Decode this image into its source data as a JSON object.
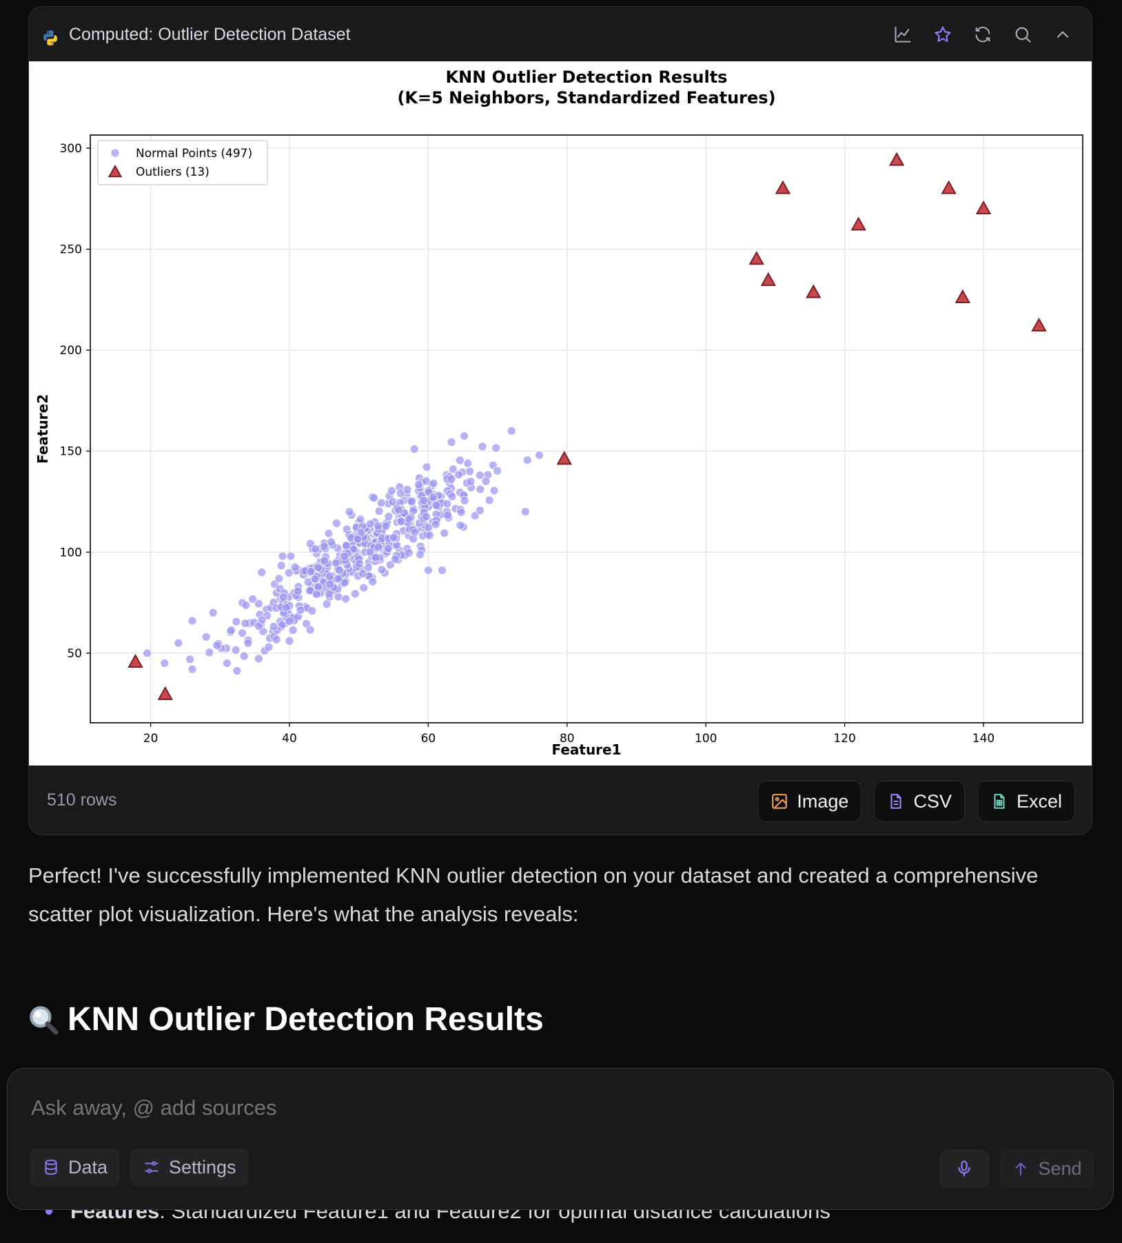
{
  "card": {
    "title": "Computed: Outlier Detection Dataset",
    "header_icons": [
      "chart-icon",
      "star-icon",
      "refresh-icon",
      "search-icon",
      "chevron-up-icon"
    ],
    "rows_label": "510 rows",
    "export_buttons": [
      {
        "label": "Image",
        "icon": "image-icon",
        "color": "#f0a45a"
      },
      {
        "label": "CSV",
        "icon": "file-icon",
        "color": "#9a8cf7"
      },
      {
        "label": "Excel",
        "icon": "spreadsheet-icon",
        "color": "#6fd3b8"
      }
    ]
  },
  "chart_data": {
    "type": "scatter",
    "title": "KNN Outlier Detection Results\n(K=5 Neighbors, Standardized Features)",
    "title_lines": [
      "KNN Outlier Detection Results",
      "(K=5 Neighbors, Standardized Features)"
    ],
    "xlabel": "Feature1",
    "ylabel": "Feature2",
    "xlim": [
      11.3,
      154.3
    ],
    "ylim": [
      15.5,
      306.5
    ],
    "xticks": [
      20,
      40,
      60,
      80,
      100,
      120,
      140
    ],
    "yticks": [
      50,
      100,
      150,
      200,
      250,
      300
    ],
    "grid": true,
    "legend_position": "top-left",
    "series": [
      {
        "name": "Normal Points (497)",
        "marker": "circle",
        "color": "#9a94ee",
        "generated_count": 497,
        "approx_trend": {
          "slope": 2.35,
          "intercept": -17.5,
          "x_center": 50,
          "x_spread": 9.5,
          "y_noise": 9
        },
        "points": [
          [
            19.5,
            50
          ],
          [
            22,
            45
          ],
          [
            24,
            55
          ],
          [
            26,
            42
          ],
          [
            26,
            66
          ],
          [
            28,
            58
          ],
          [
            29,
            70
          ],
          [
            31,
            45
          ],
          [
            58,
            151
          ],
          [
            72,
            160
          ],
          [
            76,
            148
          ],
          [
            74,
            120
          ],
          [
            60,
            91
          ],
          [
            62,
            91
          ],
          [
            39,
            98
          ],
          [
            36,
            90
          ],
          [
            40,
            56
          ]
        ]
      },
      {
        "name": "Outliers (13)",
        "marker": "triangle",
        "color": "#c9474f",
        "points": [
          [
            17.8,
            45.5
          ],
          [
            22.1,
            29.5
          ],
          [
            79.6,
            146
          ],
          [
            107.3,
            245
          ],
          [
            109,
            234.5
          ],
          [
            111.1,
            280
          ],
          [
            115.5,
            228.5
          ],
          [
            122,
            262
          ],
          [
            127.5,
            294
          ],
          [
            135,
            280
          ],
          [
            137,
            226
          ],
          [
            140,
            270
          ],
          [
            148,
            212
          ]
        ]
      }
    ]
  },
  "message": {
    "text": "Perfect! I've successfully implemented KNN outlier detection on your dataset and created a comprehensive scatter plot visualization. Here's what the analysis reveals:",
    "heading": "KNN Outlier Detection Results",
    "heading_icon": "magnifier-emoji",
    "bullet_bold": "Features",
    "bullet_rest": ": Standardized Feature1 and Feature2 for optimal distance calculations"
  },
  "composer": {
    "placeholder": "Ask away, @ add sources",
    "data_label": "Data",
    "settings_label": "Settings",
    "send_label": "Send"
  }
}
